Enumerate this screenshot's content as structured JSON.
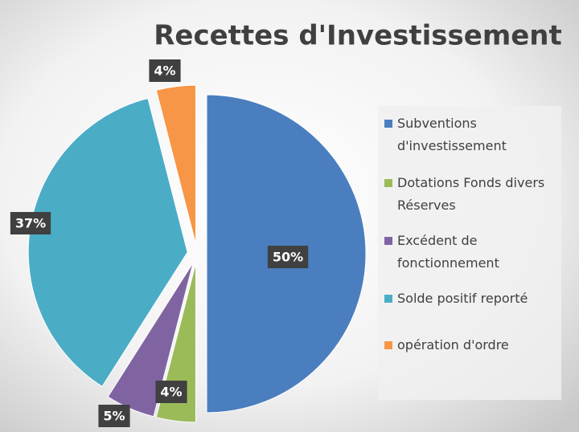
{
  "chart_data": {
    "type": "pie",
    "title": "Recettes d'Investissement",
    "categories": [
      "Subventions d'investissement",
      "Dotations Fonds divers Réserves",
      "Excédent de fonctionnement",
      "Solde positif reporté",
      "opération d'ordre"
    ],
    "values": [
      50,
      4,
      5,
      37,
      4
    ],
    "value_labels": [
      "50%",
      "4%",
      "5%",
      "37%",
      "4%"
    ],
    "colors": [
      "#4a7ebf",
      "#9bbb59",
      "#8064a2",
      "#4bacc6",
      "#f79646"
    ],
    "legend": "right"
  }
}
